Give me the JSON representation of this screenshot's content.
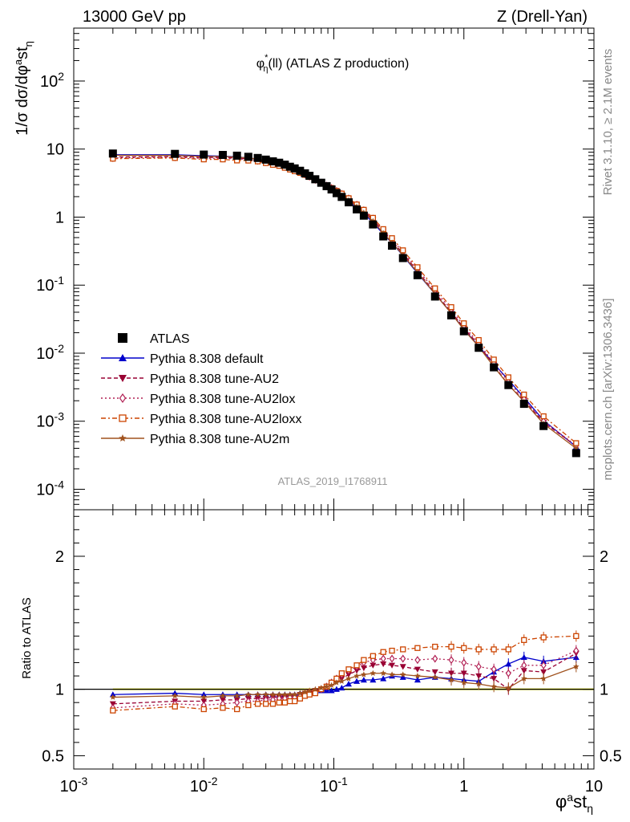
{
  "header": {
    "left": "13000 GeV pp",
    "right": "Z (Drell-Yan)"
  },
  "side": {
    "rivet": "Rivet 3.1.10, ≥ 2.1M events",
    "mcplots": "mcplots.cern.ch [arXiv:1306.3436]"
  },
  "chart_data": {
    "type": "line",
    "title": "φ*η(ll) (ATLAS Z production)",
    "analysis_label": "ATLAS_2019_I1768911",
    "ylabel": "1/σ dσ/dφ^a st_η",
    "xlabel": "φ^a st_η",
    "ratio_ylabel": "Ratio to ATLAS",
    "x_scale": "log",
    "xlim": [
      0.001,
      10
    ],
    "main_scale": "log",
    "main_ylim": [
      5e-05,
      600
    ],
    "ratio_ylim": [
      0.4,
      2.35
    ],
    "x_tick_labels": [
      "10^-3",
      "10^-2",
      "10^-1",
      "1",
      "10"
    ],
    "main_y_tick_labels": [
      "10^-4",
      "10^-3",
      "10^-2",
      "10^-1",
      "1",
      "10",
      "10^2"
    ],
    "ratio_y_tick_labels": [
      "0.5",
      "1",
      "2"
    ],
    "legend_position": "bottom-left",
    "x": [
      0.002,
      0.006,
      0.01,
      0.014,
      0.018,
      0.022,
      0.026,
      0.03,
      0.034,
      0.038,
      0.042,
      0.046,
      0.05,
      0.055,
      0.06,
      0.065,
      0.072,
      0.08,
      0.088,
      0.096,
      0.105,
      0.115,
      0.13,
      0.15,
      0.17,
      0.2,
      0.24,
      0.28,
      0.34,
      0.44,
      0.6,
      0.8,
      1.0,
      1.3,
      1.7,
      2.2,
      2.9,
      4.1,
      7.3
    ],
    "series": [
      {
        "name": "ATLAS",
        "color": "#000000",
        "marker": "square",
        "values": [
          8.6,
          8.5,
          8.3,
          8.2,
          8.0,
          7.7,
          7.4,
          7.0,
          6.6,
          6.3,
          5.9,
          5.5,
          5.2,
          4.8,
          4.4,
          4.05,
          3.6,
          3.2,
          2.85,
          2.55,
          2.25,
          1.98,
          1.65,
          1.3,
          1.05,
          0.78,
          0.52,
          0.38,
          0.25,
          0.14,
          0.068,
          0.036,
          0.021,
          0.012,
          0.0062,
          0.0034,
          0.0018,
          0.00085,
          0.00034
        ]
      },
      {
        "name": "Pythia 8.308 default",
        "color": "#0000cc",
        "marker": "triangle-up",
        "dash": "",
        "ratio": [
          0.96,
          0.97,
          0.96,
          0.96,
          0.96,
          0.96,
          0.96,
          0.96,
          0.96,
          0.96,
          0.96,
          0.96,
          0.96,
          0.97,
          0.97,
          0.98,
          0.98,
          0.99,
          0.99,
          0.99,
          1.0,
          1.01,
          1.04,
          1.06,
          1.07,
          1.07,
          1.08,
          1.1,
          1.09,
          1.07,
          1.09,
          1.08,
          1.07,
          1.06,
          1.13,
          1.19,
          1.24,
          1.21,
          1.24
        ]
      },
      {
        "name": "Pythia 8.308 tune-AU2",
        "color": "#990033",
        "marker": "triangle-down",
        "dash": "5,3",
        "ratio": [
          0.89,
          0.91,
          0.91,
          0.92,
          0.92,
          0.93,
          0.93,
          0.93,
          0.94,
          0.94,
          0.94,
          0.95,
          0.95,
          0.96,
          0.97,
          0.98,
          0.99,
          1.0,
          1.02,
          1.04,
          1.06,
          1.08,
          1.11,
          1.14,
          1.16,
          1.18,
          1.19,
          1.18,
          1.17,
          1.15,
          1.13,
          1.12,
          1.12,
          1.1,
          1.08,
          1.0,
          1.14,
          1.13,
          1.27
        ]
      },
      {
        "name": "Pythia 8.308 tune-AU2lox",
        "color": "#b22255",
        "marker": "diamond",
        "dash": "2,3",
        "ratio": [
          0.86,
          0.89,
          0.88,
          0.89,
          0.9,
          0.91,
          0.91,
          0.92,
          0.92,
          0.93,
          0.93,
          0.94,
          0.94,
          0.95,
          0.96,
          0.97,
          0.98,
          1.0,
          1.02,
          1.05,
          1.08,
          1.11,
          1.14,
          1.17,
          1.2,
          1.22,
          1.23,
          1.23,
          1.23,
          1.22,
          1.23,
          1.22,
          1.2,
          1.17,
          1.15,
          1.12,
          1.18,
          1.18,
          1.29
        ]
      },
      {
        "name": "Pythia 8.308 tune-AU2loxx",
        "color": "#cc4400",
        "marker": "open-square",
        "dash": "6,3,2,3",
        "ratio": [
          0.84,
          0.87,
          0.85,
          0.86,
          0.85,
          0.88,
          0.89,
          0.89,
          0.89,
          0.9,
          0.9,
          0.91,
          0.91,
          0.93,
          0.95,
          0.96,
          0.97,
          1.0,
          1.02,
          1.05,
          1.08,
          1.12,
          1.15,
          1.18,
          1.22,
          1.25,
          1.28,
          1.29,
          1.3,
          1.31,
          1.32,
          1.32,
          1.31,
          1.3,
          1.3,
          1.3,
          1.37,
          1.39,
          1.4
        ]
      },
      {
        "name": "Pythia 8.308 tune-AU2m",
        "color": "#a0521e",
        "marker": "star",
        "dash": "",
        "ratio": [
          0.94,
          0.95,
          0.94,
          0.95,
          0.95,
          0.96,
          0.96,
          0.96,
          0.96,
          0.96,
          0.96,
          0.96,
          0.96,
          0.97,
          0.98,
          0.99,
          1.0,
          1.01,
          1.02,
          1.03,
          1.05,
          1.06,
          1.08,
          1.1,
          1.11,
          1.12,
          1.12,
          1.11,
          1.11,
          1.1,
          1.09,
          1.07,
          1.05,
          1.04,
          1.02,
          1.01,
          1.08,
          1.08,
          1.17
        ]
      }
    ]
  }
}
